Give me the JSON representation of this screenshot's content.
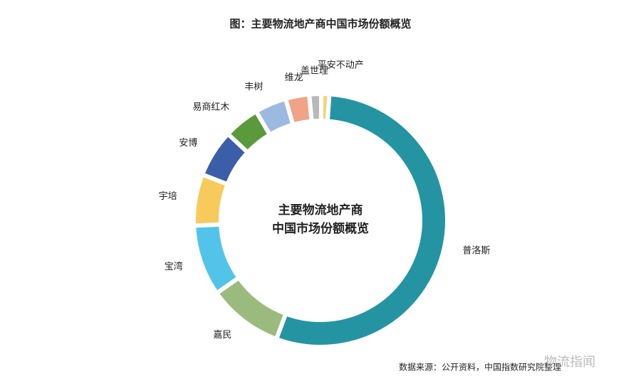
{
  "chart_data": {
    "type": "donut",
    "title": "图：主要物流地产商中国市场份额概览",
    "center_lines": [
      "主要物流地产商",
      "中国市场份额概览"
    ],
    "source": "数据来源：公开资料，中国指数研究院整理",
    "watermark": "物流指闻",
    "categories": [
      "普洛斯",
      "嘉民",
      "宝湾",
      "宇培",
      "安博",
      "易商红木",
      "丰树",
      "维龙",
      "盖世理",
      "平安不动产"
    ],
    "values": [
      54,
      9.5,
      9,
      6.5,
      6,
      4.5,
      4,
      3,
      1.5,
      1
    ],
    "colors": [
      "#2494a3",
      "#9bbb7e",
      "#52c4ea",
      "#f8ca5c",
      "#3b5ea8",
      "#5b9a3c",
      "#9cb9e0",
      "#f0a487",
      "#b9b9b9",
      "#f7d272"
    ]
  }
}
